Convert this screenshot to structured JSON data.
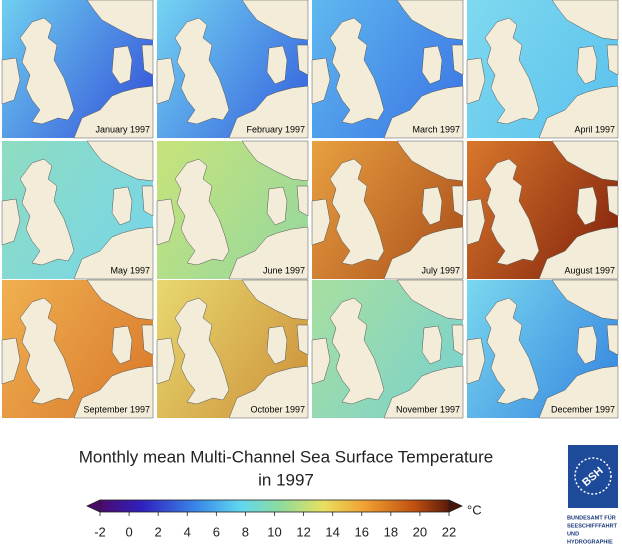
{
  "panels": [
    {
      "label": "January 1997"
    },
    {
      "label": "February 1997"
    },
    {
      "label": "March 1997"
    },
    {
      "label": "April 1997"
    },
    {
      "label": "May 1997"
    },
    {
      "label": "June 1997"
    },
    {
      "label": "July 1997"
    },
    {
      "label": "August 1997"
    },
    {
      "label": "September 1997"
    },
    {
      "label": "October 1997"
    },
    {
      "label": "November 1997"
    },
    {
      "label": "December 1997"
    }
  ],
  "title": [
    "Monthly mean Multi-Channel Sea Surface Temperature",
    "in 1997"
  ],
  "colorbar": {
    "lim": [
      -2,
      22
    ],
    "ticks": [
      -2,
      0,
      2,
      4,
      6,
      8,
      10,
      12,
      14,
      16,
      18,
      20,
      22
    ],
    "unit": "°C"
  },
  "logo": {
    "mark": "BSH",
    "lines": [
      "BUNDESAMT FÜR",
      "SEESCHIFFFAHRT",
      "UND",
      "HYDROGRAPHIE"
    ]
  }
}
